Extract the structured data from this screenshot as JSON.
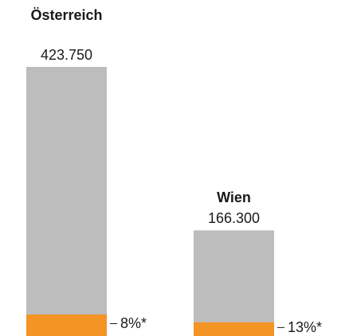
{
  "chart_data": {
    "type": "bar",
    "categories": [
      "Österreich",
      "Wien"
    ],
    "values": [
      423750,
      166300
    ],
    "value_labels": [
      "423.750",
      "166.300"
    ],
    "color": "#bdbdbd",
    "shares": [
      8,
      13
    ],
    "share_labels": [
      "8%*",
      "13%*"
    ],
    "share_color": "#f39425"
  }
}
